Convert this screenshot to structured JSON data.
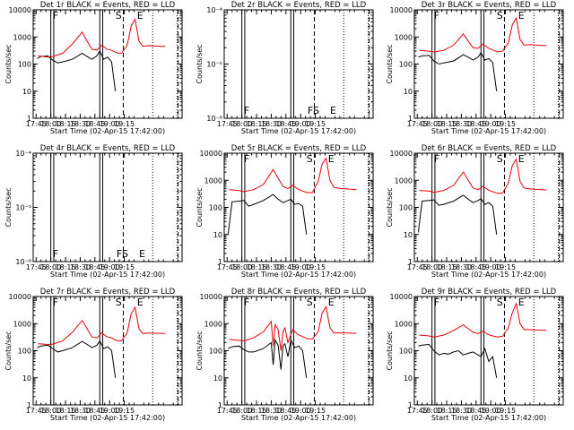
{
  "colors": {
    "events": "#000000",
    "lld": "#e8000b",
    "axis": "#000000",
    "background": "#ffffff"
  },
  "xlabel": "Start Time (02-Apr-15 17:42:00)",
  "ylabel": "Counts/sec",
  "x_ticks": [
    "17:45",
    "18:00",
    "18:15",
    "18:30",
    "18:45",
    "19:00",
    "19:15"
  ],
  "solid_lines_min": [
    18,
    21,
    68,
    71
  ],
  "dotted_lines_min": [
    122,
    147
  ],
  "dashed_lines_min": [
    92,
    148
  ],
  "chart_data": [
    {
      "type": "line",
      "title": "Det 1r BLACK = Events, RED = LLD",
      "yscale": "log",
      "ylim": [
        1,
        10000
      ],
      "xlim_min": [
        0,
        152
      ],
      "y_ticks": [
        "1",
        "10",
        "100",
        "1000",
        "10000"
      ],
      "markers": [
        {
          "text": "F",
          "x": 20
        },
        {
          "text": "S",
          "x": 84
        },
        {
          "text": "E",
          "x": 106
        }
      ],
      "series": [
        {
          "name": "Events",
          "color": "#000000",
          "x": [
            4,
            8,
            15,
            20,
            25,
            30,
            40,
            50,
            55,
            60,
            65,
            68,
            72,
            76,
            80,
            84
          ],
          "y": [
            160,
            190,
            200,
            140,
            110,
            120,
            150,
            250,
            190,
            150,
            200,
            300,
            150,
            180,
            120,
            10
          ]
        },
        {
          "name": "LLD",
          "color": "#e8000b",
          "x": [
            5,
            15,
            20,
            30,
            40,
            50,
            55,
            60,
            65,
            70,
            75,
            80,
            85,
            90,
            96,
            100,
            104,
            108,
            112,
            118,
            125,
            135
          ],
          "y": [
            200,
            180,
            190,
            250,
            550,
            1500,
            700,
            350,
            330,
            500,
            360,
            320,
            260,
            250,
            480,
            2500,
            4500,
            700,
            450,
            480,
            460,
            450
          ]
        }
      ]
    },
    {
      "type": "line",
      "title": "Det 2r BLACK = Events, RED = LLD",
      "yscale": "log",
      "ylim": [
        1e-06,
        0.0001
      ],
      "xlim_min": [
        0,
        152
      ],
      "y_ticks": [
        "10⁻⁶",
        "10⁻⁵",
        "10⁻⁴"
      ],
      "markers": [
        {
          "text": "F",
          "x": 20
        },
        {
          "text": "FS",
          "x": 85
        },
        {
          "text": "E",
          "x": 108
        }
      ],
      "series": []
    },
    {
      "type": "line",
      "title": "Det 3r BLACK = Events, RED = LLD",
      "yscale": "log",
      "ylim": [
        1,
        10000
      ],
      "xlim_min": [
        0,
        152
      ],
      "y_ticks": [
        "1",
        "10",
        "100",
        "1000",
        "10000"
      ],
      "markers": [
        {
          "text": "F",
          "x": 20
        },
        {
          "text": "S",
          "x": 84
        },
        {
          "text": "E",
          "x": 106
        }
      ],
      "series": [
        {
          "name": "Events",
          "color": "#000000",
          "x": [
            4,
            8,
            15,
            20,
            25,
            30,
            40,
            50,
            55,
            60,
            65,
            68,
            72,
            76,
            80,
            84
          ],
          "y": [
            180,
            200,
            210,
            130,
            100,
            110,
            130,
            220,
            180,
            140,
            180,
            260,
            140,
            160,
            110,
            10
          ]
        },
        {
          "name": "LLD",
          "color": "#e8000b",
          "x": [
            5,
            15,
            20,
            30,
            40,
            50,
            55,
            60,
            65,
            70,
            75,
            80,
            85,
            90,
            96,
            100,
            104,
            108,
            112,
            118,
            125,
            135
          ],
          "y": [
            320,
            300,
            280,
            320,
            500,
            1300,
            700,
            400,
            380,
            550,
            400,
            330,
            280,
            300,
            600,
            2800,
            5000,
            800,
            500,
            520,
            500,
            480
          ]
        }
      ]
    },
    {
      "type": "line",
      "title": "Det 4r BLACK = Events, RED = LLD",
      "yscale": "log",
      "ylim": [
        1e-06,
        0.0001
      ],
      "xlim_min": [
        0,
        152
      ],
      "y_ticks": [
        "10⁻⁶",
        "10⁻⁵",
        "10⁻⁴"
      ],
      "markers": [
        {
          "text": "F",
          "x": 20
        },
        {
          "text": "FS",
          "x": 85
        },
        {
          "text": "E",
          "x": 108
        }
      ],
      "series": []
    },
    {
      "type": "line",
      "title": "Det 5r BLACK = Events, RED = LLD",
      "yscale": "log",
      "ylim": [
        1,
        10000
      ],
      "xlim_min": [
        0,
        152
      ],
      "y_ticks": [
        "1",
        "10",
        "100",
        "1000",
        "10000"
      ],
      "markers": [
        {
          "text": "F",
          "x": 20
        },
        {
          "text": "S",
          "x": 84
        },
        {
          "text": "E",
          "x": 106
        }
      ],
      "series": [
        {
          "name": "Events",
          "color": "#000000",
          "x": [
            4,
            8,
            15,
            20,
            25,
            30,
            40,
            50,
            55,
            60,
            65,
            68,
            72,
            76,
            80,
            84
          ],
          "y": [
            10,
            160,
            170,
            180,
            110,
            130,
            180,
            300,
            200,
            150,
            180,
            200,
            130,
            140,
            110,
            10
          ]
        },
        {
          "name": "LLD",
          "color": "#e8000b",
          "x": [
            5,
            15,
            20,
            30,
            40,
            50,
            55,
            60,
            65,
            70,
            75,
            80,
            85,
            90,
            96,
            100,
            104,
            108,
            112,
            118,
            125,
            135
          ],
          "y": [
            450,
            420,
            380,
            450,
            700,
            2500,
            1200,
            600,
            500,
            650,
            480,
            400,
            350,
            350,
            900,
            4000,
            6500,
            1000,
            550,
            500,
            480,
            450
          ]
        }
      ]
    },
    {
      "type": "line",
      "title": "Det 6r BLACK = Events, RED = LLD",
      "yscale": "log",
      "ylim": [
        1,
        10000
      ],
      "xlim_min": [
        0,
        152
      ],
      "y_ticks": [
        "1",
        "10",
        "100",
        "1000",
        "10000"
      ],
      "markers": [
        {
          "text": "F",
          "x": 20
        },
        {
          "text": "S",
          "x": 84
        },
        {
          "text": "E",
          "x": 106
        }
      ],
      "series": [
        {
          "name": "Events",
          "color": "#000000",
          "x": [
            4,
            8,
            15,
            20,
            25,
            30,
            40,
            50,
            55,
            60,
            65,
            68,
            72,
            76,
            80,
            84
          ],
          "y": [
            12,
            170,
            180,
            190,
            120,
            130,
            170,
            280,
            200,
            150,
            180,
            210,
            130,
            150,
            110,
            10
          ]
        },
        {
          "name": "LLD",
          "color": "#e8000b",
          "x": [
            5,
            15,
            20,
            30,
            40,
            50,
            55,
            60,
            65,
            70,
            75,
            80,
            85,
            90,
            96,
            100,
            104,
            108,
            112,
            118,
            125,
            135
          ],
          "y": [
            420,
            400,
            360,
            420,
            650,
            2000,
            1000,
            520,
            450,
            600,
            450,
            380,
            330,
            330,
            800,
            3500,
            6000,
            900,
            520,
            480,
            460,
            440
          ]
        }
      ]
    },
    {
      "type": "line",
      "title": "Det 7r BLACK = Events, RED = LLD",
      "yscale": "log",
      "ylim": [
        1,
        10000
      ],
      "xlim_min": [
        0,
        152
      ],
      "y_ticks": [
        "1",
        "10",
        "100",
        "1000",
        "10000"
      ],
      "markers": [
        {
          "text": "F",
          "x": 20
        },
        {
          "text": "S",
          "x": 84
        },
        {
          "text": "E",
          "x": 106
        }
      ],
      "series": [
        {
          "name": "Events",
          "color": "#000000",
          "x": [
            4,
            8,
            15,
            20,
            25,
            30,
            40,
            50,
            55,
            60,
            65,
            68,
            72,
            76,
            80,
            84
          ],
          "y": [
            130,
            150,
            160,
            120,
            90,
            100,
            130,
            220,
            170,
            130,
            160,
            230,
            120,
            140,
            100,
            10
          ]
        },
        {
          "name": "LLD",
          "color": "#e8000b",
          "x": [
            5,
            15,
            20,
            30,
            40,
            50,
            55,
            60,
            65,
            70,
            75,
            80,
            85,
            90,
            96,
            100,
            104,
            108,
            112,
            118,
            125,
            135
          ],
          "y": [
            180,
            170,
            175,
            230,
            480,
            1300,
            650,
            320,
            300,
            460,
            330,
            300,
            240,
            230,
            450,
            2300,
            4000,
            650,
            430,
            450,
            440,
            430
          ]
        }
      ]
    },
    {
      "type": "line",
      "title": "Det 8r BLACK = Events, RED = LLD",
      "yscale": "log",
      "ylim": [
        1,
        10000
      ],
      "xlim_min": [
        0,
        152
      ],
      "y_ticks": [
        "1",
        "10",
        "100",
        "1000",
        "10000"
      ],
      "markers": [
        {
          "text": "F",
          "x": 20
        },
        {
          "text": "S",
          "x": 84
        },
        {
          "text": "E",
          "x": 106
        }
      ],
      "series": [
        {
          "name": "Events",
          "color": "#000000",
          "x": [
            4,
            8,
            15,
            20,
            25,
            30,
            40,
            48,
            50,
            52,
            55,
            58,
            60,
            62,
            65,
            68,
            72,
            76,
            80,
            84
          ],
          "y": [
            120,
            140,
            150,
            110,
            90,
            90,
            120,
            200,
            30,
            250,
            160,
            20,
            150,
            180,
            60,
            250,
            130,
            150,
            100,
            10
          ]
        },
        {
          "name": "LLD",
          "color": "#e8000b",
          "x": [
            5,
            15,
            20,
            30,
            40,
            48,
            50,
            52,
            55,
            58,
            60,
            62,
            65,
            70,
            75,
            80,
            85,
            90,
            96,
            100,
            104,
            108,
            112,
            118,
            125,
            135
          ],
          "y": [
            260,
            240,
            230,
            300,
            500,
            1200,
            150,
            900,
            600,
            100,
            500,
            700,
            200,
            600,
            400,
            330,
            280,
            270,
            500,
            2500,
            4200,
            700,
            450,
            460,
            450,
            440
          ]
        }
      ]
    },
    {
      "type": "line",
      "title": "Det 9r BLACK = Events, RED = LLD",
      "yscale": "log",
      "ylim": [
        1,
        10000
      ],
      "xlim_min": [
        0,
        152
      ],
      "y_ticks": [
        "1",
        "10",
        "100",
        "1000",
        "10000"
      ],
      "markers": [
        {
          "text": "F",
          "x": 20
        },
        {
          "text": "S",
          "x": 84
        },
        {
          "text": "E",
          "x": 106
        }
      ],
      "series": [
        {
          "name": "Events",
          "color": "#000000",
          "x": [
            4,
            8,
            15,
            20,
            25,
            30,
            35,
            40,
            45,
            50,
            55,
            60,
            65,
            68,
            72,
            76,
            80,
            84
          ],
          "y": [
            150,
            160,
            170,
            100,
            70,
            80,
            75,
            90,
            100,
            70,
            80,
            90,
            70,
            60,
            120,
            40,
            60,
            10
          ]
        },
        {
          "name": "LLD",
          "color": "#e8000b",
          "x": [
            5,
            15,
            20,
            30,
            40,
            50,
            55,
            60,
            65,
            70,
            75,
            80,
            85,
            90,
            96,
            100,
            104,
            108,
            112,
            118,
            125,
            135
          ],
          "y": [
            380,
            350,
            320,
            380,
            550,
            900,
            650,
            480,
            430,
            520,
            400,
            350,
            320,
            340,
            700,
            2500,
            5500,
            1000,
            600,
            600,
            580,
            560
          ]
        }
      ]
    }
  ]
}
